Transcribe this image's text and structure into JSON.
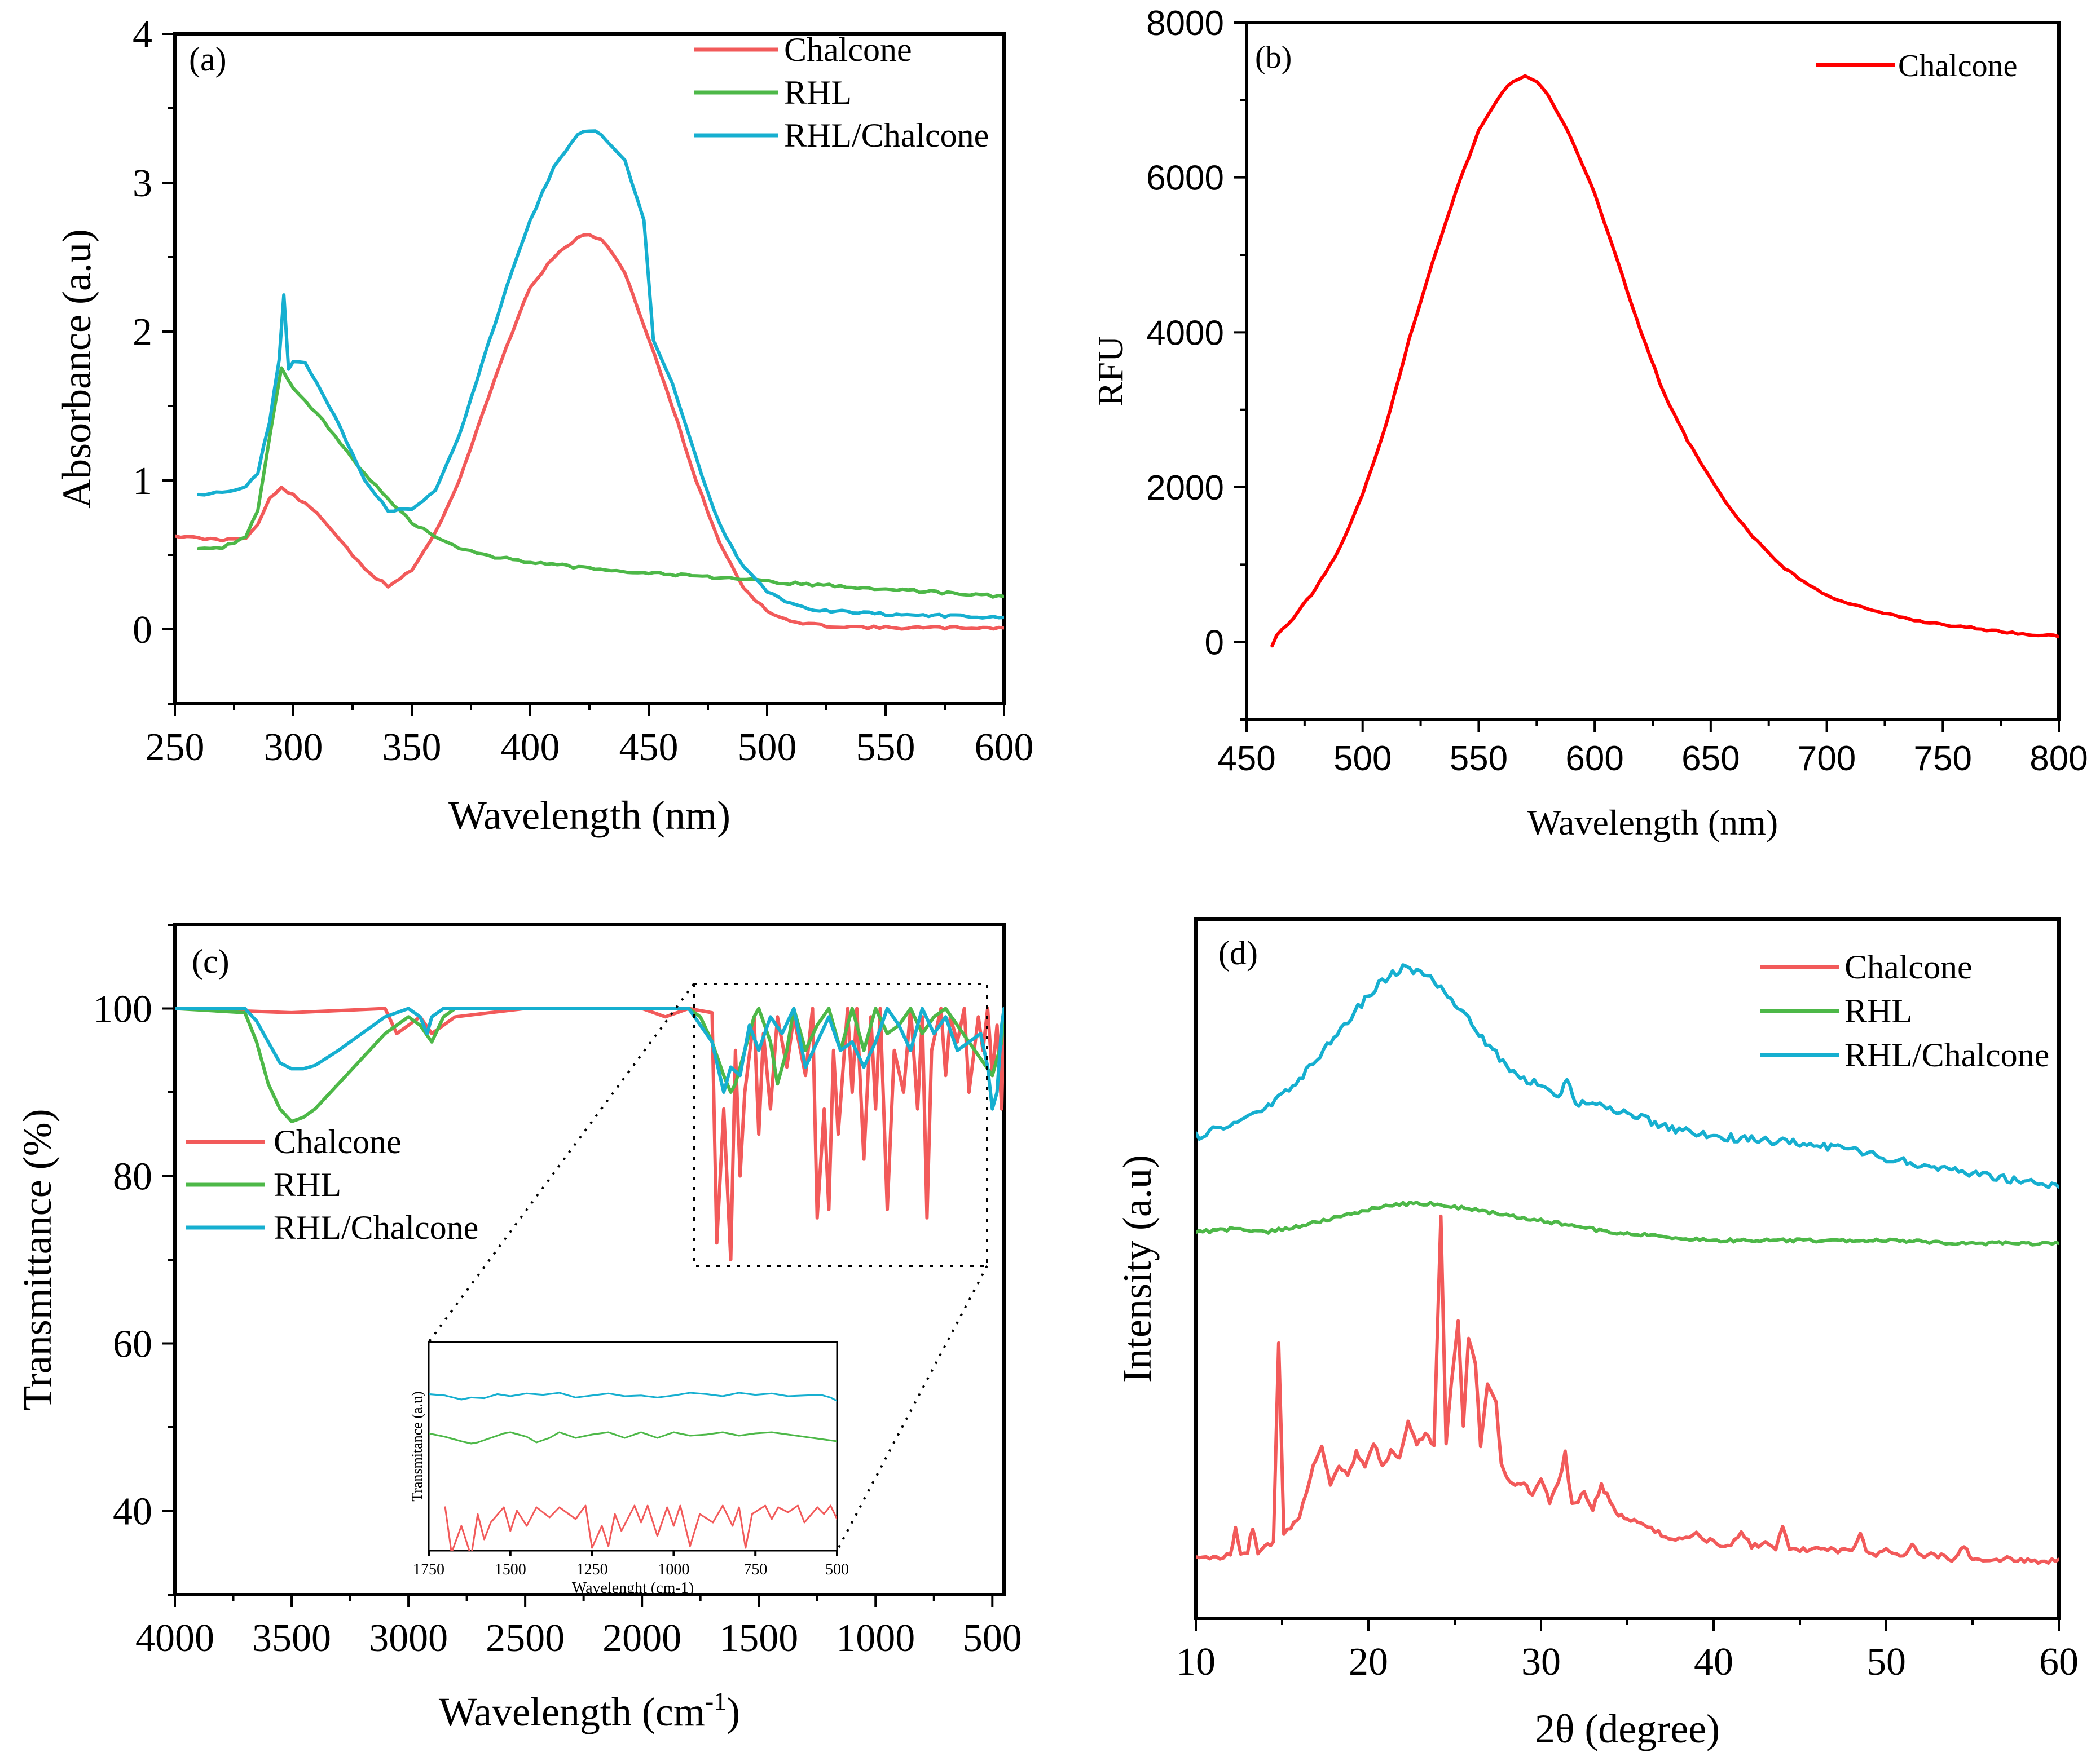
{
  "chart_data": [
    {
      "type": "line",
      "panel_label": "(a)",
      "xlabel": "Wavelength (nm)",
      "ylabel": "Absorbance (a.u)",
      "xlim": [
        250,
        600
      ],
      "ylim": [
        -0.5,
        4
      ],
      "xticks": [
        "250",
        "300",
        "350",
        "400",
        "450",
        "500",
        "550",
        "600"
      ],
      "yticks": [
        "0",
        "1",
        "2",
        "3",
        "4"
      ],
      "legend_position": "top-right",
      "series": [
        {
          "name": "Chalcone",
          "color": "#f25a5a",
          "x": [
            250,
            260,
            270,
            280,
            285,
            290,
            295,
            300,
            310,
            320,
            330,
            340,
            350,
            360,
            370,
            380,
            390,
            400,
            410,
            420,
            425,
            430,
            440,
            450,
            460,
            470,
            480,
            490,
            500,
            510,
            520,
            530,
            550,
            575,
            600
          ],
          "y": [
            0.63,
            0.61,
            0.6,
            0.62,
            0.7,
            0.88,
            0.95,
            0.9,
            0.78,
            0.6,
            0.4,
            0.29,
            0.4,
            0.65,
            1.0,
            1.45,
            1.9,
            2.3,
            2.5,
            2.63,
            2.65,
            2.62,
            2.4,
            1.95,
            1.5,
            1.0,
            0.58,
            0.28,
            0.12,
            0.05,
            0.03,
            0.02,
            0.01,
            0.01,
            0.01
          ]
        },
        {
          "name": "RHL",
          "color": "#4db848",
          "x": [
            260,
            270,
            280,
            285,
            290,
            295,
            300,
            310,
            320,
            330,
            340,
            350,
            360,
            370,
            380,
            400,
            425,
            450,
            475,
            500,
            550,
            600
          ],
          "y": [
            0.55,
            0.55,
            0.62,
            0.8,
            1.3,
            1.75,
            1.62,
            1.45,
            1.25,
            1.05,
            0.87,
            0.72,
            0.62,
            0.55,
            0.5,
            0.45,
            0.41,
            0.38,
            0.35,
            0.32,
            0.27,
            0.22
          ]
        },
        {
          "name": "RHL/Chalcone",
          "color": "#16afd0",
          "x": [
            260,
            270,
            280,
            285,
            290,
            294,
            296,
            298,
            300,
            305,
            310,
            320,
            330,
            340,
            350,
            360,
            370,
            380,
            390,
            400,
            410,
            420,
            425,
            430,
            440,
            448,
            452,
            460,
            470,
            480,
            490,
            500,
            510,
            520,
            550,
            575,
            600
          ],
          "y": [
            0.9,
            0.92,
            0.95,
            1.05,
            1.4,
            1.8,
            2.25,
            1.75,
            1.8,
            1.8,
            1.65,
            1.35,
            1.0,
            0.8,
            0.8,
            0.93,
            1.3,
            1.8,
            2.3,
            2.75,
            3.1,
            3.32,
            3.35,
            3.33,
            3.15,
            2.75,
            1.95,
            1.65,
            1.15,
            0.7,
            0.42,
            0.25,
            0.17,
            0.13,
            0.1,
            0.09,
            0.08
          ]
        }
      ]
    },
    {
      "type": "line",
      "panel_label": "(b)",
      "xlabel": "Wavelength (nm)",
      "ylabel": "RFU",
      "xlim": [
        450,
        800
      ],
      "ylim": [
        -1000,
        8000
      ],
      "xticks": [
        "450",
        "500",
        "550",
        "600",
        "650",
        "700",
        "750",
        "800"
      ],
      "yticks": [
        "0",
        "2000",
        "4000",
        "6000",
        "8000"
      ],
      "legend_position": "top-right",
      "series": [
        {
          "name": "Chalcone",
          "color": "#ff0000",
          "x": [
            461,
            463,
            470,
            480,
            490,
            500,
            510,
            520,
            530,
            540,
            550,
            560,
            565,
            570,
            575,
            580,
            590,
            600,
            610,
            620,
            630,
            640,
            650,
            660,
            670,
            680,
            690,
            700,
            720,
            740,
            760,
            780,
            800
          ],
          "y": [
            -50,
            100,
            300,
            700,
            1200,
            1900,
            2800,
            3900,
            4900,
            5800,
            6600,
            7100,
            7250,
            7300,
            7250,
            7050,
            6500,
            5800,
            4900,
            4000,
            3200,
            2600,
            2100,
            1650,
            1300,
            1000,
            780,
            600,
            400,
            270,
            190,
            120,
            70
          ]
        }
      ]
    },
    {
      "type": "line",
      "panel_label": "(c)",
      "xlabel": "Wavelength (cm-1)",
      "ylabel": "Transmittance (%)",
      "xlim": [
        4000,
        450
      ],
      "ylim": [
        30,
        110
      ],
      "xticks": [
        "4000",
        "3500",
        "3000",
        "2500",
        "2000",
        "1500",
        "1000",
        "500"
      ],
      "yticks": [
        "40",
        "60",
        "80",
        "100"
      ],
      "legend_position": "left",
      "series": [
        {
          "name": "Chalcone",
          "color": "#f25a5a",
          "x": [
            4000,
            3500,
            3100,
            3050,
            2950,
            2900,
            2800,
            2500,
            2000,
            1900,
            1800,
            1700,
            1680,
            1650,
            1620,
            1600,
            1580,
            1560,
            1520,
            1500,
            1480,
            1450,
            1420,
            1380,
            1350,
            1300,
            1270,
            1250,
            1220,
            1200,
            1180,
            1160,
            1120,
            1100,
            1080,
            1050,
            1020,
            1000,
            980,
            950,
            920,
            880,
            850,
            820,
            800,
            780,
            760,
            720,
            700,
            680,
            650,
            620,
            600,
            560,
            540,
            520,
            500,
            480,
            460,
            450
          ],
          "y": [
            100,
            99.5,
            100,
            97,
            99,
            97,
            99,
            100,
            100,
            99,
            100,
            99.5,
            72,
            88,
            70,
            95,
            80,
            90,
            99,
            85,
            97,
            88,
            99,
            93,
            99,
            92,
            100,
            75,
            88,
            76,
            95,
            85,
            100,
            90,
            100,
            82,
            99,
            88,
            100,
            76,
            95,
            90,
            100,
            88,
            99,
            75,
            95,
            100,
            92,
            99,
            96,
            100,
            90,
            99,
            95,
            100,
            92,
            98,
            88,
            100
          ]
        },
        {
          "name": "RHL",
          "color": "#4db848",
          "x": [
            4000,
            3700,
            3650,
            3600,
            3550,
            3500,
            3450,
            3400,
            3300,
            3200,
            3100,
            3000,
            2950,
            2900,
            2850,
            2800,
            2500,
            2000,
            1900,
            1800,
            1750,
            1700,
            1650,
            1620,
            1600,
            1560,
            1520,
            1500,
            1450,
            1420,
            1380,
            1350,
            1300,
            1250,
            1200,
            1150,
            1100,
            1050,
            1000,
            950,
            900,
            850,
            800,
            750,
            700,
            650,
            600,
            550,
            500,
            460,
            450
          ],
          "y": [
            100,
            99.5,
            96,
            91,
            88,
            86.5,
            87,
            88,
            91,
            94,
            97,
            99,
            98,
            96,
            99,
            100,
            100,
            100,
            100,
            100,
            99,
            96,
            92,
            90,
            91,
            95,
            99,
            100,
            96,
            91,
            95,
            100,
            95,
            98,
            100,
            95,
            100,
            95,
            100,
            97,
            98,
            100,
            97,
            99,
            100,
            98,
            96,
            94,
            92,
            96,
            100
          ]
        },
        {
          "name": "RHL/Chalcone",
          "color": "#16afd0",
          "x": [
            4000,
            3700,
            3650,
            3600,
            3550,
            3500,
            3450,
            3400,
            3300,
            3200,
            3100,
            3000,
            2950,
            2920,
            2900,
            2850,
            2800,
            2500,
            2000,
            1900,
            1800,
            1750,
            1700,
            1650,
            1620,
            1580,
            1540,
            1500,
            1450,
            1400,
            1350,
            1300,
            1250,
            1200,
            1150,
            1100,
            1050,
            1000,
            950,
            900,
            850,
            800,
            750,
            700,
            650,
            600,
            550,
            520,
            500,
            480,
            460,
            450
          ],
          "y": [
            100,
            100,
            98.5,
            96,
            93.5,
            92.8,
            92.8,
            93.2,
            95,
            97,
            99,
            100,
            99,
            97,
            99,
            100,
            100,
            100,
            100,
            100,
            100,
            98,
            96,
            90,
            93,
            92,
            98,
            95,
            99,
            97,
            100,
            93,
            96,
            99,
            95,
            96,
            93,
            96,
            100,
            98,
            95,
            100,
            97,
            99,
            95,
            96,
            97,
            93,
            88,
            90,
            98,
            100
          ]
        }
      ],
      "inset": {
        "xlabel": "Wavelenght (cm-1)",
        "ylabel": "Transmitance (a.u)",
        "xlim": [
          1750,
          500
        ],
        "xticks": [
          "1750",
          "1500",
          "1250",
          "1000",
          "750",
          "500"
        ]
      }
    },
    {
      "type": "line",
      "panel_label": "(d)",
      "xlabel": "2θ (degree)",
      "ylabel": "Intensity (a.u)",
      "xlim": [
        10,
        60
      ],
      "xticks": [
        "10",
        "20",
        "30",
        "40",
        "50",
        "60"
      ],
      "legend_position": "top-right",
      "series": [
        {
          "name": "Chalcone",
          "color": "#f25a5a",
          "x": [
            10,
            11,
            12,
            12.3,
            12.6,
            13,
            13.3,
            13.6,
            14,
            14.5,
            14.8,
            15.1,
            15.5,
            16,
            16.8,
            17.3,
            17.8,
            18.3,
            18.8,
            19.3,
            19.8,
            20.3,
            20.8,
            21.3,
            21.8,
            22.3,
            22.8,
            23.3,
            23.8,
            24.2,
            24.5,
            24.8,
            25.2,
            25.5,
            25.8,
            26.2,
            26.5,
            26.9,
            27.4,
            27.7,
            28,
            28.5,
            29,
            29.5,
            30,
            30.5,
            31,
            31.4,
            31.8,
            32.5,
            33,
            33.5,
            34,
            34.5,
            35,
            36,
            37,
            38,
            39,
            40,
            41,
            41.6,
            42.2,
            43,
            43.6,
            44,
            44.4,
            45,
            46,
            47,
            48,
            48.5,
            49,
            50,
            51,
            51.5,
            52,
            53,
            54,
            54.5,
            55,
            56,
            57,
            58,
            59,
            60
          ],
          "y": [
            0.02,
            0.025,
            0.03,
            0.1,
            0.03,
            0.04,
            0.1,
            0.04,
            0.05,
            0.06,
            0.55,
            0.08,
            0.1,
            0.12,
            0.25,
            0.3,
            0.2,
            0.25,
            0.22,
            0.28,
            0.24,
            0.3,
            0.25,
            0.28,
            0.26,
            0.35,
            0.3,
            0.32,
            0.3,
            0.85,
            0.3,
            0.45,
            0.6,
            0.35,
            0.55,
            0.5,
            0.3,
            0.45,
            0.4,
            0.25,
            0.22,
            0.2,
            0.2,
            0.18,
            0.22,
            0.16,
            0.2,
            0.28,
            0.15,
            0.18,
            0.14,
            0.2,
            0.16,
            0.13,
            0.12,
            0.1,
            0.08,
            0.07,
            0.08,
            0.06,
            0.05,
            0.09,
            0.05,
            0.06,
            0.05,
            0.1,
            0.05,
            0.04,
            0.05,
            0.04,
            0.04,
            0.08,
            0.03,
            0.04,
            0.03,
            0.06,
            0.03,
            0.03,
            0.02,
            0.05,
            0.02,
            0.02,
            0.02,
            0.02,
            0.015,
            0.02
          ]
        },
        {
          "name": "RHL",
          "color": "#4db848",
          "x": [
            10,
            12,
            14,
            16,
            18,
            20,
            22,
            24,
            26,
            28,
            30,
            32,
            34,
            36,
            38,
            40,
            45,
            50,
            55,
            60
          ],
          "y": [
            0,
            0.01,
            0.0,
            0.02,
            0.05,
            0.08,
            0.1,
            0.1,
            0.08,
            0.06,
            0.04,
            0.02,
            0.0,
            -0.01,
            -0.02,
            -0.03,
            -0.03,
            -0.03,
            -0.04,
            -0.04
          ]
        },
        {
          "name": "RHL/Chalcone",
          "color": "#16afd0",
          "x": [
            10,
            12,
            14,
            16,
            18,
            20,
            21,
            22,
            23,
            24,
            25,
            26,
            27,
            28,
            29,
            30,
            31,
            31.5,
            32,
            34,
            36,
            38,
            40,
            42,
            44,
            46,
            48,
            50,
            52,
            54,
            56,
            58,
            60
          ],
          "y": [
            0,
            0.04,
            0.1,
            0.2,
            0.35,
            0.5,
            0.56,
            0.6,
            0.58,
            0.54,
            0.46,
            0.4,
            0.32,
            0.25,
            0.2,
            0.18,
            0.14,
            0.2,
            0.12,
            0.1,
            0.06,
            0.02,
            0.0,
            -0.01,
            -0.02,
            -0.03,
            -0.05,
            -0.08,
            -0.1,
            -0.12,
            -0.14,
            -0.16,
            -0.18
          ]
        }
      ]
    }
  ]
}
